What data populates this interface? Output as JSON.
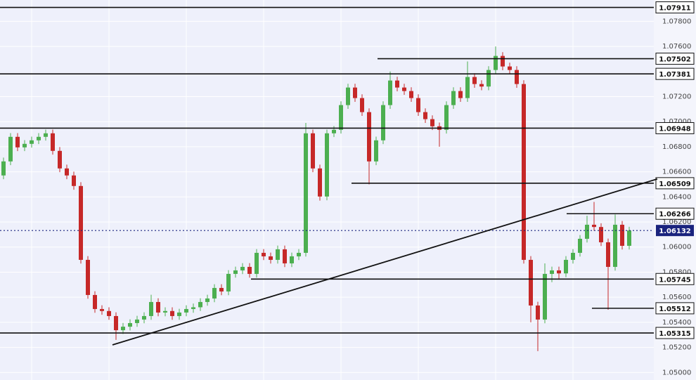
{
  "chart_data": {
    "type": "candlestick",
    "open": [
      1.06571,
      1.06683,
      1.06879,
      1.06795,
      1.06823,
      1.06851,
      1.06879,
      1.06907,
      1.06767,
      1.06627,
      1.06571,
      1.06487,
      1.05898,
      1.05618,
      1.05506,
      1.0549,
      1.0545,
      1.05337,
      1.05365,
      1.05394,
      1.05422,
      1.0545,
      1.05562,
      1.05478,
      1.0549,
      1.0545,
      1.05478,
      1.05506,
      1.0552,
      1.05562,
      1.0559,
      1.05674,
      1.05646,
      1.05786,
      1.05814,
      1.05842,
      1.05786,
      1.05954,
      1.05926,
      1.05898,
      1.05982,
      1.0587,
      1.05926,
      1.05954,
      1.06907,
      1.06627,
      1.06403,
      1.06907,
      1.06935,
      1.07132,
      1.07272,
      1.07188,
      1.07076,
      1.06683,
      1.06851,
      1.07132,
      1.07328,
      1.07272,
      1.07244,
      1.07188,
      1.07076,
      1.0702,
      1.06963,
      1.06935,
      1.07132,
      1.07244,
      1.07188,
      1.07356,
      1.073,
      1.0728,
      1.07412,
      1.07524,
      1.0744,
      1.07412,
      1.073,
      1.05898,
      1.05534,
      1.05422,
      1.05786,
      1.05814,
      1.0579,
      1.05898,
      1.05954,
      1.06066,
      1.06178,
      1.0616,
      1.06038,
      1.05842,
      1.06178,
      1.0601
    ],
    "high": [
      1.06713,
      1.06909,
      1.06909,
      1.06853,
      1.06881,
      1.06909,
      1.06937,
      1.06937,
      1.06797,
      1.06657,
      1.06601,
      1.06517,
      1.05928,
      1.05648,
      1.05536,
      1.0552,
      1.0548,
      1.05395,
      1.05424,
      1.05452,
      1.0548,
      1.0562,
      1.05592,
      1.0552,
      1.0552,
      1.05508,
      1.05536,
      1.0555,
      1.05592,
      1.0562,
      1.05704,
      1.05704,
      1.05816,
      1.05844,
      1.05872,
      1.05872,
      1.05984,
      1.05984,
      1.05956,
      1.06012,
      1.06012,
      1.05956,
      1.05984,
      1.0699,
      1.06937,
      1.06657,
      1.06937,
      1.06965,
      1.07162,
      1.07302,
      1.07302,
      1.07218,
      1.07106,
      1.06881,
      1.07162,
      1.074,
      1.07358,
      1.07302,
      1.07274,
      1.07218,
      1.07106,
      1.0705,
      1.06993,
      1.07162,
      1.07274,
      1.07274,
      1.0748,
      1.07386,
      1.0733,
      1.07442,
      1.076,
      1.07554,
      1.0747,
      1.07442,
      1.0733,
      1.05928,
      1.05564,
      1.0587,
      1.05844,
      1.05844,
      1.05928,
      1.05984,
      1.06096,
      1.0625,
      1.0636,
      1.0619,
      1.06068,
      1.0626,
      1.06208,
      1.06162
    ],
    "low": [
      1.06541,
      1.06653,
      1.06765,
      1.06765,
      1.06793,
      1.06821,
      1.06849,
      1.06737,
      1.06597,
      1.06541,
      1.06457,
      1.05868,
      1.05588,
      1.05476,
      1.0546,
      1.0542,
      1.0526,
      1.05307,
      1.05335,
      1.05364,
      1.05392,
      1.0542,
      1.05448,
      1.05448,
      1.0542,
      1.0542,
      1.05448,
      1.05476,
      1.0549,
      1.05532,
      1.0556,
      1.05616,
      1.05616,
      1.05756,
      1.05784,
      1.05756,
      1.05756,
      1.05896,
      1.05868,
      1.05868,
      1.0584,
      1.0584,
      1.05896,
      1.05924,
      1.06597,
      1.0637,
      1.06373,
      1.06877,
      1.06905,
      1.07102,
      1.07158,
      1.07046,
      1.065,
      1.06653,
      1.06821,
      1.07102,
      1.07242,
      1.07214,
      1.07158,
      1.07046,
      1.0699,
      1.06933,
      1.068,
      1.06905,
      1.07102,
      1.07158,
      1.07158,
      1.0727,
      1.0725,
      1.0725,
      1.07382,
      1.0741,
      1.07382,
      1.0727,
      1.05868,
      1.054,
      1.0517,
      1.05392,
      1.0572,
      1.0574,
      1.0576,
      1.05868,
      1.05924,
      1.06036,
      1.0613,
      1.06008,
      1.055,
      1.05812,
      1.0598,
      1.0598
    ],
    "close": [
      1.06683,
      1.06879,
      1.06795,
      1.06823,
      1.06851,
      1.06879,
      1.06907,
      1.06767,
      1.06627,
      1.06571,
      1.06487,
      1.05898,
      1.05618,
      1.05506,
      1.0549,
      1.0545,
      1.05337,
      1.05365,
      1.05394,
      1.05422,
      1.0545,
      1.05562,
      1.05478,
      1.0549,
      1.0545,
      1.05478,
      1.05506,
      1.0552,
      1.05562,
      1.0559,
      1.05674,
      1.05646,
      1.05786,
      1.05814,
      1.05842,
      1.05786,
      1.05954,
      1.05926,
      1.05898,
      1.05982,
      1.0587,
      1.05926,
      1.05954,
      1.06907,
      1.06627,
      1.06403,
      1.06907,
      1.06935,
      1.07132,
      1.07272,
      1.07188,
      1.07076,
      1.06683,
      1.06851,
      1.07132,
      1.07328,
      1.07272,
      1.07244,
      1.07188,
      1.07076,
      1.0702,
      1.06963,
      1.06935,
      1.07132,
      1.07244,
      1.07188,
      1.07356,
      1.073,
      1.0728,
      1.07412,
      1.07524,
      1.0744,
      1.07412,
      1.073,
      1.05898,
      1.05534,
      1.05422,
      1.05786,
      1.05814,
      1.0579,
      1.05898,
      1.05954,
      1.06066,
      1.06178,
      1.0616,
      1.06038,
      1.05842,
      1.06178,
      1.0601,
      1.06132
    ],
    "up_color": "#4caf50",
    "down_color": "#c62828",
    "xlim": [
      -0.5,
      92.5
    ],
    "ylim": [
      1.0494,
      1.0797
    ],
    "yticks": [
      {
        "value": 1.05,
        "label": "1.05000"
      },
      {
        "value": 1.052,
        "label": "1.05200"
      },
      {
        "value": 1.054,
        "label": "1.05400"
      },
      {
        "value": 1.056,
        "label": "1.05600"
      },
      {
        "value": 1.058,
        "label": "1.05800"
      },
      {
        "value": 1.06,
        "label": "1.06000"
      },
      {
        "value": 1.062,
        "label": "1.06200"
      },
      {
        "value": 1.064,
        "label": "1.06400"
      },
      {
        "value": 1.066,
        "label": "1.06600"
      },
      {
        "value": 1.068,
        "label": "1.06800"
      },
      {
        "value": 1.07,
        "label": "1.07000"
      },
      {
        "value": 1.072,
        "label": "1.07200"
      },
      {
        "value": 1.076,
        "label": "1.07600"
      },
      {
        "value": 1.078,
        "label": "1.07800"
      }
    ],
    "grid": true,
    "levels": [
      {
        "value": 1.07911
      },
      {
        "value": 1.07502,
        "start": 53.2
      },
      {
        "value": 1.07381
      },
      {
        "value": 1.06948
      },
      {
        "value": 1.06509,
        "start": 49.5
      },
      {
        "value": 1.06266,
        "start": 80.1
      },
      {
        "value": 1.05745,
        "start": 35.2
      },
      {
        "value": 1.05512,
        "start": 83.7
      },
      {
        "value": 1.05315
      }
    ],
    "current_price": 1.06132,
    "trendline": {
      "x": [
        15.5,
        93
      ],
      "y": [
        1.0522,
        1.06543
      ]
    }
  }
}
